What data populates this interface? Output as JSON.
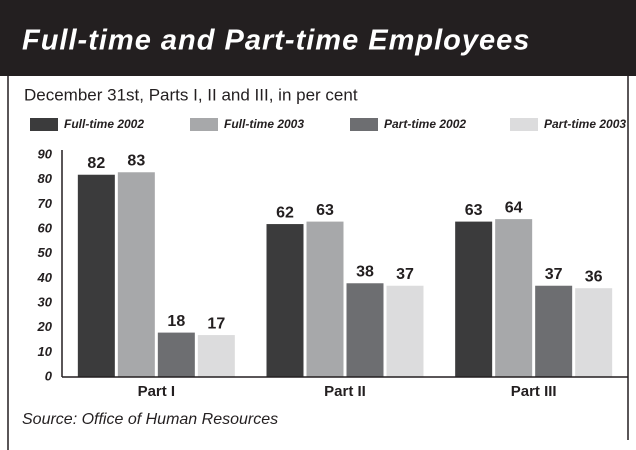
{
  "chart_data": {
    "type": "bar",
    "title": "Full-time and Part-time Employees",
    "subtitle": "December 31st, Parts I, II and III,  in per cent",
    "source": "Source:  Office of Human Resources",
    "categories": [
      "Part I",
      "Part II",
      "Part III"
    ],
    "series": [
      {
        "name": "Full-time 2002",
        "color": "#3b3b3c",
        "values": [
          82,
          62,
          63
        ]
      },
      {
        "name": "Full-time 2003",
        "color": "#a7a8aa",
        "values": [
          83,
          63,
          64
        ]
      },
      {
        "name": "Part-time 2002",
        "color": "#6d6e71",
        "values": [
          18,
          38,
          37
        ]
      },
      {
        "name": "Part-time 2003",
        "color": "#dcdcdd",
        "values": [
          17,
          37,
          36
        ]
      }
    ],
    "ylim": [
      0,
      90
    ],
    "yticks": [
      0,
      10,
      20,
      30,
      40,
      50,
      60,
      70,
      80,
      90
    ],
    "grid": false
  }
}
